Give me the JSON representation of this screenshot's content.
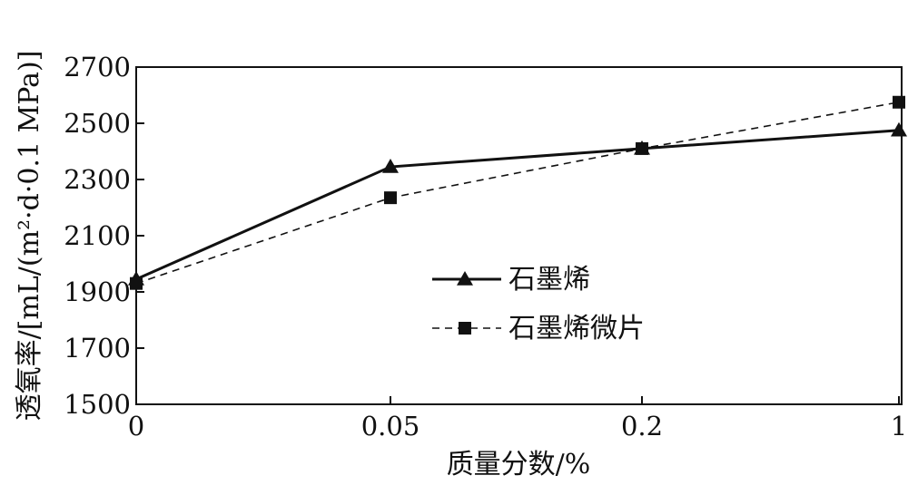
{
  "chart_data": {
    "type": "line",
    "categories": [
      "0",
      "0.05",
      "0.2",
      "1"
    ],
    "xlabel": "质量分数/%",
    "ylabel": "透氧率/[mL/(m²·d·0.1 MPa)]",
    "ylim": [
      1500,
      2700
    ],
    "yticks": [
      1500,
      1700,
      1900,
      2100,
      2300,
      2500,
      2700
    ],
    "grid": false,
    "legend_position": "center-right",
    "series": [
      {
        "name": "石墨烯",
        "values": [
          1945,
          2345,
          2410,
          2475
        ],
        "marker": "triangle",
        "line": "solid",
        "color": "#111111"
      },
      {
        "name": "石墨烯微片",
        "values": [
          1930,
          2235,
          2410,
          2575
        ],
        "marker": "square",
        "line": "dashed",
        "color": "#111111"
      }
    ]
  }
}
